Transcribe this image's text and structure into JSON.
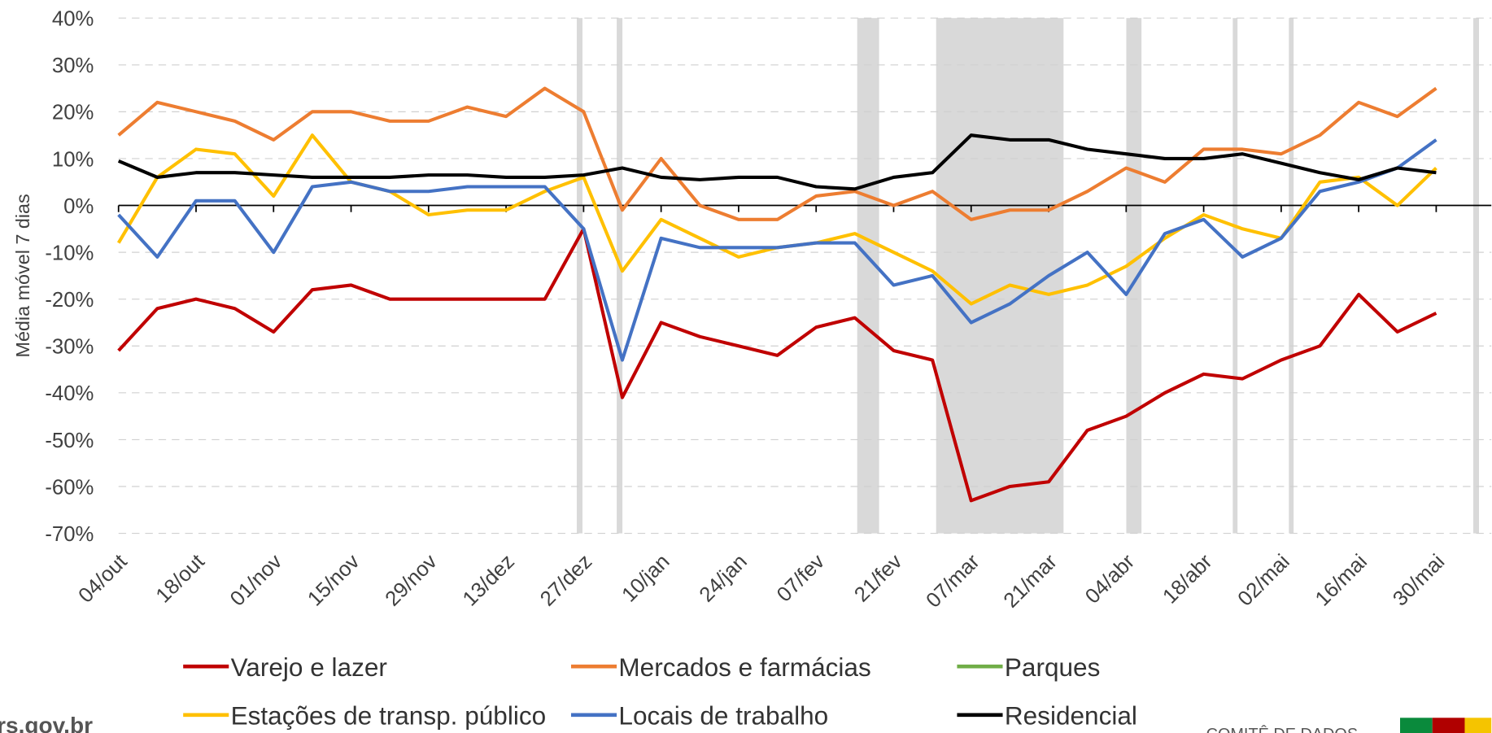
{
  "chart_data": {
    "type": "line",
    "y_label": "Média móvel 7 dias",
    "categories": [
      "04/out",
      null,
      "18/out",
      null,
      "01/nov",
      null,
      "15/nov",
      null,
      "29/nov",
      null,
      "13/dez",
      null,
      "27/dez",
      null,
      "10/jan",
      null,
      "24/jan",
      null,
      "07/fev",
      null,
      "21/fev",
      null,
      "07/mar",
      null,
      "21/mar",
      null,
      "04/abr",
      null,
      "18/abr",
      null,
      "02/mai",
      null,
      "16/mai",
      null,
      "30/mai"
    ],
    "series": [
      {
        "name": "Varejo e lazer",
        "color": "#c00000",
        "values": [
          -31,
          -22,
          -20,
          -22,
          -27,
          -18,
          -17,
          -20,
          -20,
          -20,
          -20,
          -20,
          -5,
          -41,
          -25,
          -28,
          -30,
          -32,
          -26,
          -24,
          -31,
          -33,
          -63,
          -60,
          -59,
          -48,
          -45,
          -40,
          -36,
          -37,
          -33,
          -30,
          -19,
          -27,
          -23
        ]
      },
      {
        "name": "Mercados e farmácias",
        "color": "#ed7d31",
        "values": [
          15,
          22,
          20,
          18,
          14,
          20,
          20,
          18,
          18,
          21,
          19,
          25,
          20,
          -1,
          10,
          0,
          -3,
          -3,
          2,
          3,
          0,
          3,
          -3,
          -1,
          -1,
          3,
          8,
          5,
          12,
          12,
          11,
          15,
          22,
          19,
          25
        ]
      },
      {
        "name": "Parques",
        "color": "#70ad47",
        "values": [
          null,
          null,
          null,
          null,
          null,
          null,
          null,
          null,
          null,
          null,
          null,
          null,
          null,
          null,
          null,
          null,
          null,
          null,
          null,
          null,
          null,
          null,
          null,
          null,
          null,
          null,
          null,
          null,
          null,
          null,
          null,
          null,
          null,
          null,
          null
        ]
      },
      {
        "name": "Estações de transp. público",
        "color": "#ffc000",
        "values": [
          -8,
          6,
          12,
          11,
          2,
          15,
          5,
          3,
          -2,
          -1,
          -1,
          3,
          6,
          -14,
          -3,
          -7,
          -11,
          -9,
          -8,
          -6,
          -10,
          -14,
          -21,
          -17,
          -19,
          -17,
          -13,
          -7,
          -2,
          -5,
          -7,
          5,
          6,
          0,
          8
        ]
      },
      {
        "name": "Locais de trabalho",
        "color": "#4472c4",
        "values": [
          -2,
          -11,
          1,
          1,
          -10,
          4,
          5,
          3,
          3,
          4,
          4,
          4,
          -5,
          -33,
          -7,
          -9,
          -9,
          -9,
          -8,
          -8,
          -17,
          -15,
          -25,
          -21,
          -15,
          -10,
          -19,
          -6,
          -3,
          -11,
          -7,
          3,
          5,
          8,
          14
        ]
      },
      {
        "name": "Residencial",
        "color": "#000000",
        "values": [
          9.5,
          6,
          7,
          7,
          6.5,
          6,
          6,
          6,
          6.5,
          6.5,
          6,
          6,
          6.5,
          8,
          6,
          5.5,
          6,
          6,
          4,
          3.5,
          6,
          7,
          15,
          14,
          14,
          12,
          11,
          10,
          10,
          11,
          9,
          7,
          5.5,
          8,
          7
        ]
      }
    ],
    "ylim": [
      -70,
      40
    ],
    "yticks": [
      {
        "value": -70,
        "label": "-70%"
      },
      {
        "value": -60,
        "label": "-60%"
      },
      {
        "value": -50,
        "label": "-50%"
      },
      {
        "value": -40,
        "label": "-40%"
      },
      {
        "value": -30,
        "label": "-30%"
      },
      {
        "value": -20,
        "label": "-20%"
      },
      {
        "value": -10,
        "label": "-10%"
      },
      {
        "value": 0,
        "label": "0%"
      },
      {
        "value": 10,
        "label": "10%"
      },
      {
        "value": 20,
        "label": "20%"
      },
      {
        "value": 30,
        "label": "30%"
      },
      {
        "value": 40,
        "label": "40%"
      }
    ],
    "grid": true,
    "source": "rs.gov.br",
    "logo_text": "COMITÊ DE DADOS"
  }
}
